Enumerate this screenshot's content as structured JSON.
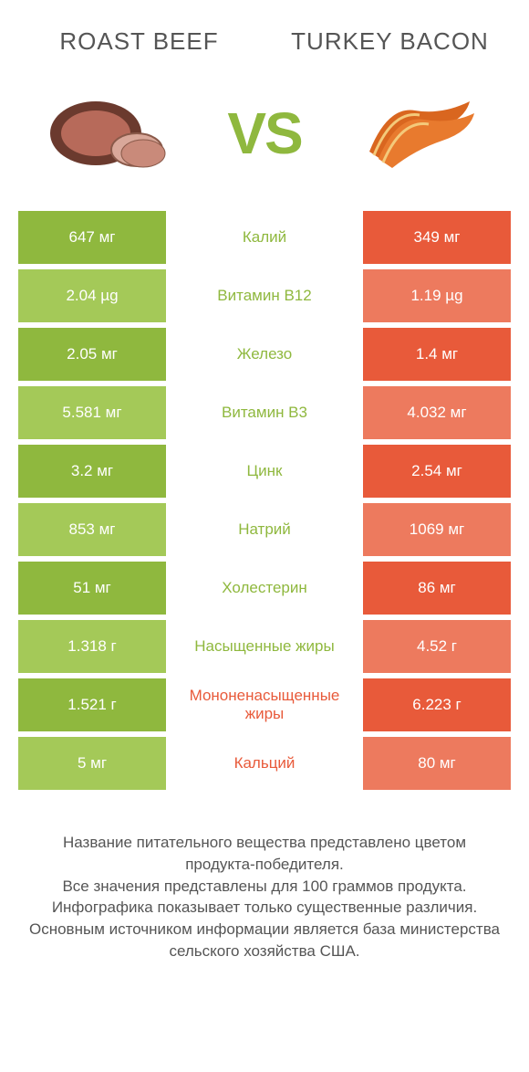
{
  "header": {
    "left_title": "ROAST BEEF",
    "right_title": "TURKEY BACON",
    "left_title_color": "#555555",
    "right_title_color": "#555555"
  },
  "vs": {
    "text": "VS",
    "color": "#8fb83e"
  },
  "colors": {
    "left_dark": "#8fb83e",
    "left_light": "#a4c958",
    "right_dark": "#e85a3a",
    "right_light": "#ed7a5e",
    "mid_bg": "#ffffff",
    "green_text": "#8fb83e",
    "red_text": "#e85a3a"
  },
  "rows": [
    {
      "left": "647 мг",
      "mid": "Калий",
      "right": "349 мг",
      "winner": "left",
      "shade": "dark"
    },
    {
      "left": "2.04 µg",
      "mid": "Витамин B12",
      "right": "1.19 µg",
      "winner": "left",
      "shade": "light"
    },
    {
      "left": "2.05 мг",
      "mid": "Железо",
      "right": "1.4 мг",
      "winner": "left",
      "shade": "dark"
    },
    {
      "left": "5.581 мг",
      "mid": "Витамин B3",
      "right": "4.032 мг",
      "winner": "left",
      "shade": "light"
    },
    {
      "left": "3.2 мг",
      "mid": "Цинк",
      "right": "2.54 мг",
      "winner": "left",
      "shade": "dark"
    },
    {
      "left": "853 мг",
      "mid": "Натрий",
      "right": "1069 мг",
      "winner": "left",
      "shade": "light"
    },
    {
      "left": "51 мг",
      "mid": "Холестерин",
      "right": "86 мг",
      "winner": "left",
      "shade": "dark"
    },
    {
      "left": "1.318 г",
      "mid": "Насыщенные жиры",
      "right": "4.52 г",
      "winner": "left",
      "shade": "light"
    },
    {
      "left": "1.521 г",
      "mid": "Мононенасыщенные жиры",
      "right": "6.223 г",
      "winner": "right",
      "shade": "dark"
    },
    {
      "left": "5 мг",
      "mid": "Кальций",
      "right": "80 мг",
      "winner": "right",
      "shade": "light"
    }
  ],
  "footer": {
    "line1": "Название питательного вещества представлено цветом продукта-победителя.",
    "line2": "Все значения представлены для 100 граммов продукта.",
    "line3": "Инфографика показывает только существенные различия.",
    "line4": "Основным источником информации является база министерства сельского хозяйства США."
  }
}
